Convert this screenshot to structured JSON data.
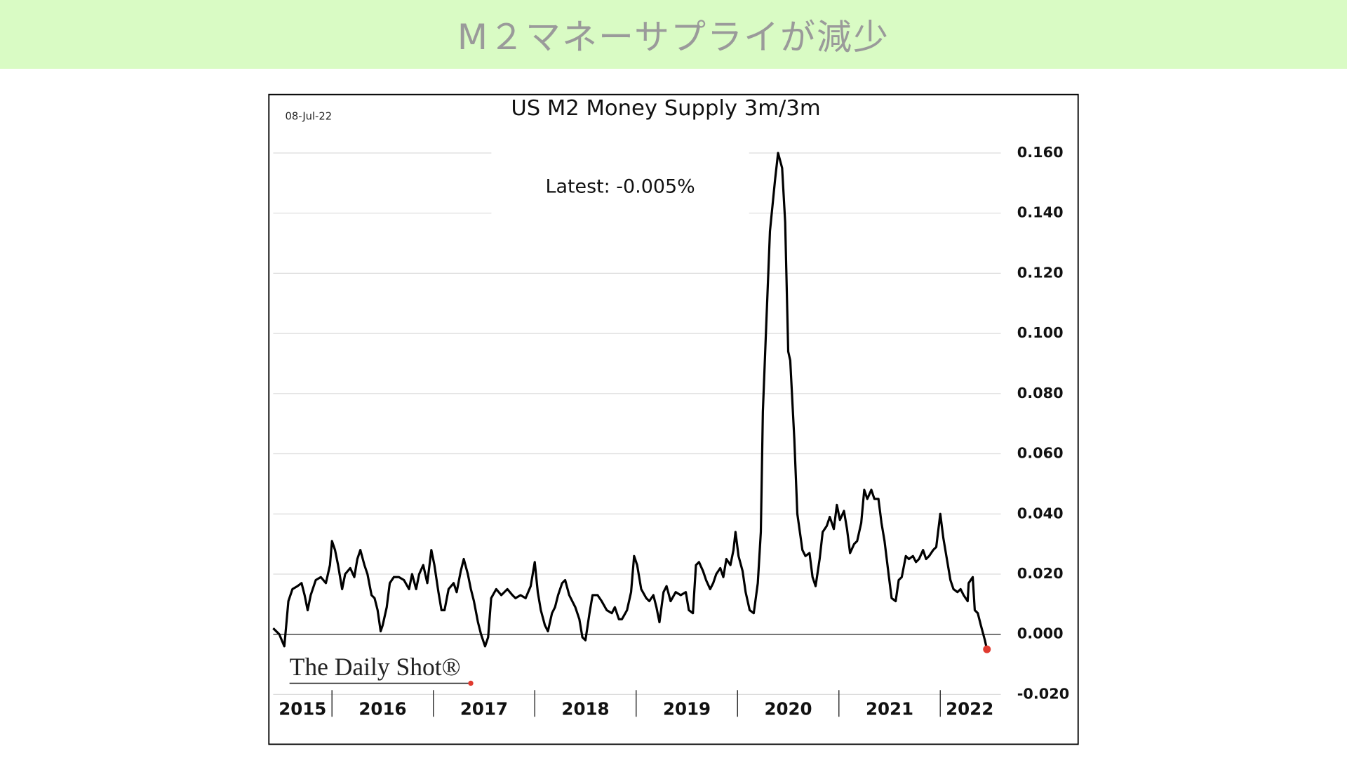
{
  "header": {
    "title": "M２マネーサプライが減少"
  },
  "chart_data": {
    "type": "line",
    "title": "US M2 Money Supply 3m/3m",
    "date_label": "08-Jul-22",
    "annotation": "Latest:  -0.005%",
    "logo": "The Daily Shot®",
    "xlim": [
      2015.42,
      2022.58
    ],
    "xticks": [
      2015,
      2016,
      2017,
      2018,
      2019,
      2020,
      2021,
      2022
    ],
    "ylim": [
      -0.02,
      0.16
    ],
    "yticks": [
      {
        "value": -0.02,
        "label": "-0.020"
      },
      {
        "value": 0,
        "label": "0.000"
      },
      {
        "value": 0.02,
        "label": "0.020"
      },
      {
        "value": 0.04,
        "label": "0.040"
      },
      {
        "value": 0.06,
        "label": "0.060"
      },
      {
        "value": 0.08,
        "label": "0.080"
      },
      {
        "value": 0.1,
        "label": "0.100"
      },
      {
        "value": 0.12,
        "label": "0.120"
      },
      {
        "value": 0.14,
        "label": "0.140"
      },
      {
        "value": 0.16,
        "label": "0.160"
      }
    ],
    "grid": true,
    "latest_color": "#e03a2f",
    "series": [
      {
        "color": "#000000",
        "x": [
          2015.42,
          2015.48,
          2015.53,
          2015.57,
          2015.61,
          2015.66,
          2015.7,
          2015.73,
          2015.76,
          2015.79,
          2015.84,
          2015.89,
          2015.94,
          2015.98,
          2016.0,
          2016.03,
          2016.06,
          2016.1,
          2016.13,
          2016.18,
          2016.22,
          2016.25,
          2016.28,
          2016.32,
          2016.35,
          2016.39,
          2016.42,
          2016.45,
          2016.48,
          2016.5,
          2016.54,
          2016.57,
          2016.61,
          2016.66,
          2016.71,
          2016.76,
          2016.79,
          2016.83,
          2016.86,
          2016.9,
          2016.94,
          2016.98,
          2017.01,
          2017.05,
          2017.08,
          2017.11,
          2017.15,
          2017.2,
          2017.23,
          2017.27,
          2017.3,
          2017.34,
          2017.37,
          2017.4,
          2017.44,
          2017.47,
          2017.51,
          2017.54,
          2017.57,
          2017.62,
          2017.67,
          2017.73,
          2017.78,
          2017.81,
          2017.86,
          2017.91,
          2017.96,
          2018.0,
          2018.03,
          2018.06,
          2018.1,
          2018.13,
          2018.17,
          2018.2,
          2018.23,
          2018.27,
          2018.3,
          2018.34,
          2018.37,
          2018.4,
          2018.44,
          2018.47,
          2018.5,
          2018.54,
          2018.57,
          2018.62,
          2018.66,
          2018.71,
          2018.76,
          2018.79,
          2018.83,
          2018.86,
          2018.91,
          2018.95,
          2018.98,
          2019.01,
          2019.05,
          2019.1,
          2019.13,
          2019.17,
          2019.2,
          2019.23,
          2019.27,
          2019.3,
          2019.34,
          2019.39,
          2019.44,
          2019.49,
          2019.52,
          2019.56,
          2019.59,
          2019.62,
          2019.66,
          2019.69,
          2019.73,
          2019.76,
          2019.79,
          2019.83,
          2019.86,
          2019.89,
          2019.93,
          2019.96,
          2019.98,
          2020.01,
          2020.05,
          2020.08,
          2020.12,
          2020.16,
          2020.2,
          2020.23,
          2020.25,
          2020.28,
          2020.32,
          2020.37,
          2020.4,
          2020.44,
          2020.47,
          2020.5,
          2020.52,
          2020.56,
          2020.59,
          2020.64,
          2020.67,
          2020.71,
          2020.74,
          2020.77,
          2020.81,
          2020.84,
          2020.88,
          2020.91,
          2020.95,
          2020.98,
          2021.01,
          2021.05,
          2021.08,
          2021.11,
          2021.15,
          2021.18,
          2021.22,
          2021.25,
          2021.28,
          2021.32,
          2021.35,
          2021.39,
          2021.42,
          2021.45,
          2021.49,
          2021.52,
          2021.56,
          2021.59,
          2021.62,
          2021.66,
          2021.69,
          2021.73,
          2021.76,
          2021.79,
          2021.83,
          2021.86,
          2021.89,
          2021.93,
          2021.96,
          2022.0,
          2022.03,
          2022.06,
          2022.1,
          2022.13,
          2022.17,
          2022.2,
          2022.23,
          2022.27,
          2022.28,
          2022.32,
          2022.34,
          2022.37,
          2022.4,
          2022.44,
          2022.46
        ],
        "values": [
          0.002,
          0.0,
          -0.004,
          0.011,
          0.015,
          0.016,
          0.017,
          0.013,
          0.008,
          0.013,
          0.018,
          0.019,
          0.017,
          0.023,
          0.031,
          0.028,
          0.023,
          0.015,
          0.02,
          0.022,
          0.019,
          0.025,
          0.028,
          0.023,
          0.02,
          0.013,
          0.012,
          0.008,
          0.001,
          0.003,
          0.009,
          0.017,
          0.019,
          0.019,
          0.018,
          0.015,
          0.02,
          0.015,
          0.02,
          0.023,
          0.017,
          0.028,
          0.023,
          0.014,
          0.008,
          0.008,
          0.015,
          0.017,
          0.014,
          0.021,
          0.025,
          0.02,
          0.015,
          0.011,
          0.004,
          0.0,
          -0.004,
          -0.001,
          0.012,
          0.015,
          0.013,
          0.015,
          0.013,
          0.012,
          0.013,
          0.012,
          0.016,
          0.024,
          0.014,
          0.008,
          0.003,
          0.001,
          0.007,
          0.009,
          0.013,
          0.017,
          0.018,
          0.013,
          0.011,
          0.009,
          0.005,
          -0.001,
          -0.002,
          0.007,
          0.013,
          0.013,
          0.011,
          0.008,
          0.007,
          0.009,
          0.005,
          0.005,
          0.008,
          0.014,
          0.026,
          0.023,
          0.015,
          0.012,
          0.011,
          0.013,
          0.009,
          0.004,
          0.014,
          0.016,
          0.011,
          0.014,
          0.013,
          0.014,
          0.008,
          0.007,
          0.023,
          0.024,
          0.021,
          0.018,
          0.015,
          0.017,
          0.02,
          0.022,
          0.019,
          0.025,
          0.023,
          0.028,
          0.034,
          0.026,
          0.021,
          0.014,
          0.008,
          0.007,
          0.017,
          0.034,
          0.074,
          0.1,
          0.134,
          0.151,
          0.16,
          0.155,
          0.137,
          0.094,
          0.091,
          0.065,
          0.04,
          0.028,
          0.026,
          0.027,
          0.019,
          0.016,
          0.025,
          0.034,
          0.036,
          0.039,
          0.035,
          0.043,
          0.038,
          0.041,
          0.035,
          0.027,
          0.03,
          0.031,
          0.037,
          0.048,
          0.045,
          0.048,
          0.045,
          0.045,
          0.037,
          0.031,
          0.02,
          0.012,
          0.011,
          0.018,
          0.019,
          0.026,
          0.025,
          0.026,
          0.024,
          0.025,
          0.028,
          0.025,
          0.026,
          0.028,
          0.029,
          0.04,
          0.032,
          0.026,
          0.018,
          0.015,
          0.014,
          0.015,
          0.013,
          0.011,
          0.017,
          0.019,
          0.008,
          0.007,
          0.003,
          -0.002,
          -0.005
        ]
      }
    ]
  }
}
